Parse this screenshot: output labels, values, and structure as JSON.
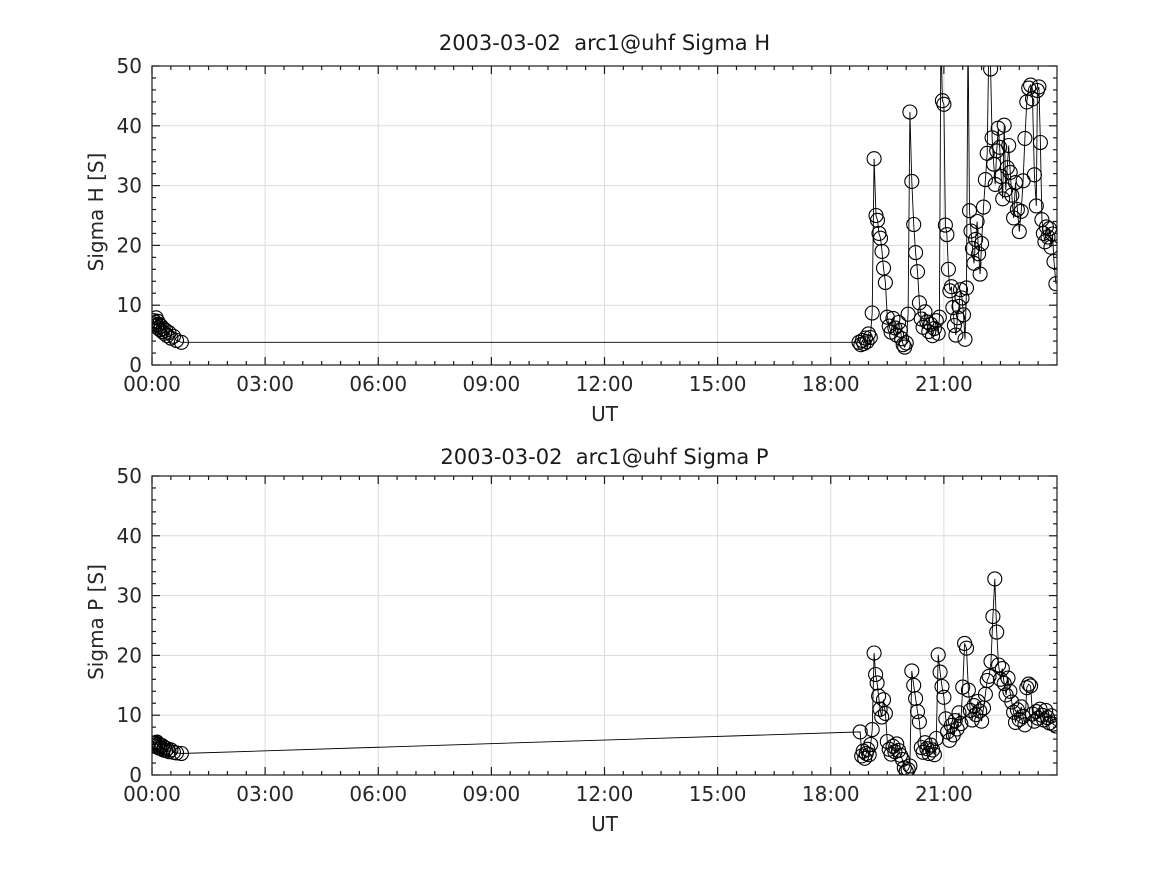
{
  "figure": {
    "background_color": "#ffffff",
    "line_color": "#000000",
    "marker_color": "#000000",
    "grid_color": "#dcdcdc",
    "axis_color": "#1a1a1a"
  },
  "chart_data": [
    {
      "type": "line",
      "title": "2003-03-02  arc1@uhf Sigma H",
      "xlabel": "UT",
      "ylabel": "Sigma H [S]",
      "xlim_hours": [
        0,
        24
      ],
      "ylim": [
        0,
        50
      ],
      "grid": true,
      "marker": "open-circle",
      "x_major_tick_hours": [
        0,
        3,
        6,
        9,
        12,
        15,
        18,
        21
      ],
      "x_tick_labels": [
        "00:00",
        "03:00",
        "06:00",
        "09:00",
        "12:00",
        "15:00",
        "18:00",
        "21:00"
      ],
      "x_minor_step_hours": 0.5,
      "y_major_ticks": [
        0,
        10,
        20,
        30,
        40,
        50
      ],
      "y_minor_step": 2,
      "points_hours_value": [
        [
          0.03,
          6.9
        ],
        [
          0.05,
          7.4
        ],
        [
          0.07,
          6.5
        ],
        [
          0.09,
          7.1
        ],
        [
          0.11,
          7.9
        ],
        [
          0.13,
          6.7
        ],
        [
          0.15,
          7.3
        ],
        [
          0.17,
          6.2
        ],
        [
          0.19,
          6.8
        ],
        [
          0.21,
          5.9
        ],
        [
          0.24,
          6.5
        ],
        [
          0.27,
          5.6
        ],
        [
          0.3,
          6.1
        ],
        [
          0.33,
          5.3
        ],
        [
          0.36,
          5.8
        ],
        [
          0.4,
          4.9
        ],
        [
          0.45,
          5.4
        ],
        [
          0.5,
          4.5
        ],
        [
          0.57,
          4.8
        ],
        [
          0.65,
          4.1
        ],
        [
          0.78,
          3.8
        ],
        [
          18.75,
          3.8
        ],
        [
          18.8,
          3.4
        ],
        [
          18.84,
          4.1
        ],
        [
          18.88,
          3.6
        ],
        [
          18.92,
          4.5
        ],
        [
          18.96,
          3.9
        ],
        [
          19.0,
          5.2
        ],
        [
          19.05,
          4.6
        ],
        [
          19.1,
          8.7
        ],
        [
          19.15,
          34.5
        ],
        [
          19.2,
          25.0
        ],
        [
          19.24,
          24.2
        ],
        [
          19.28,
          22.0
        ],
        [
          19.32,
          21.2
        ],
        [
          19.36,
          19.0
        ],
        [
          19.4,
          16.2
        ],
        [
          19.45,
          13.8
        ],
        [
          19.5,
          8.0
        ],
        [
          19.55,
          6.5
        ],
        [
          19.6,
          5.5
        ],
        [
          19.65,
          7.8
        ],
        [
          19.7,
          6.2
        ],
        [
          19.75,
          5.0
        ],
        [
          19.8,
          7.1
        ],
        [
          19.85,
          5.8
        ],
        [
          19.88,
          4.4
        ],
        [
          19.92,
          3.4
        ],
        [
          19.96,
          3.0
        ],
        [
          20.0,
          3.7
        ],
        [
          20.05,
          8.5
        ],
        [
          20.1,
          42.3
        ],
        [
          20.15,
          30.7
        ],
        [
          20.2,
          23.5
        ],
        [
          20.25,
          18.8
        ],
        [
          20.3,
          15.6
        ],
        [
          20.35,
          10.4
        ],
        [
          20.4,
          7.7
        ],
        [
          20.45,
          6.3
        ],
        [
          20.5,
          8.9
        ],
        [
          20.55,
          7.2
        ],
        [
          20.6,
          5.6
        ],
        [
          20.65,
          6.8
        ],
        [
          20.7,
          4.9
        ],
        [
          20.75,
          6.1
        ],
        [
          20.8,
          7.4
        ],
        [
          20.85,
          5.3
        ],
        [
          20.88,
          8.0
        ],
        [
          20.92,
          55.5
        ],
        [
          20.96,
          44.2
        ],
        [
          21.0,
          43.6
        ],
        [
          21.04,
          23.4
        ],
        [
          21.08,
          21.8
        ],
        [
          21.12,
          16.0
        ],
        [
          21.16,
          12.4
        ],
        [
          21.2,
          13.1
        ],
        [
          21.24,
          9.6
        ],
        [
          21.28,
          6.6
        ],
        [
          21.32,
          5.0
        ],
        [
          21.36,
          7.9
        ],
        [
          21.4,
          9.8
        ],
        [
          21.44,
          12.6
        ],
        [
          21.48,
          11.2
        ],
        [
          21.52,
          8.4
        ],
        [
          21.56,
          4.3
        ],
        [
          21.6,
          12.9
        ],
        [
          21.64,
          56.0
        ],
        [
          21.68,
          25.8
        ],
        [
          21.72,
          22.4
        ],
        [
          21.76,
          19.5
        ],
        [
          21.8,
          17.0
        ],
        [
          21.84,
          21.0
        ],
        [
          21.88,
          24.0
        ],
        [
          21.92,
          18.6
        ],
        [
          21.96,
          15.2
        ],
        [
          22.0,
          20.3
        ],
        [
          22.05,
          26.4
        ],
        [
          22.1,
          31.0
        ],
        [
          22.15,
          35.4
        ],
        [
          22.2,
          57.0
        ],
        [
          22.24,
          49.5
        ],
        [
          22.28,
          38.0
        ],
        [
          22.32,
          33.6
        ],
        [
          22.36,
          30.2
        ],
        [
          22.4,
          35.8
        ],
        [
          22.44,
          39.6
        ],
        [
          22.48,
          36.4
        ],
        [
          22.52,
          31.5
        ],
        [
          22.56,
          27.8
        ],
        [
          22.6,
          40.1
        ],
        [
          22.64,
          29.3
        ],
        [
          22.68,
          33.0
        ],
        [
          22.72,
          36.7
        ],
        [
          22.76,
          32.2
        ],
        [
          22.8,
          28.4
        ],
        [
          22.85,
          24.6
        ],
        [
          22.9,
          30.5
        ],
        [
          22.95,
          26.0
        ],
        [
          23.0,
          22.3
        ],
        [
          23.05,
          25.7
        ],
        [
          23.1,
          30.8
        ],
        [
          23.15,
          37.9
        ],
        [
          23.2,
          44.0
        ],
        [
          23.25,
          46.3
        ],
        [
          23.3,
          46.8
        ],
        [
          23.35,
          44.5
        ],
        [
          23.4,
          31.8
        ],
        [
          23.45,
          26.6
        ],
        [
          23.48,
          45.9
        ],
        [
          23.52,
          46.5
        ],
        [
          23.56,
          37.2
        ],
        [
          23.6,
          24.3
        ],
        [
          23.64,
          22.0
        ],
        [
          23.68,
          20.6
        ],
        [
          23.72,
          23.1
        ],
        [
          23.76,
          21.4
        ],
        [
          23.8,
          22.8
        ],
        [
          23.84,
          19.7
        ],
        [
          23.88,
          21.9
        ],
        [
          23.92,
          17.3
        ],
        [
          23.97,
          13.6
        ]
      ]
    },
    {
      "type": "line",
      "title": "2003-03-02  arc1@uhf Sigma P",
      "xlabel": "UT",
      "ylabel": "Sigma P [S]",
      "xlim_hours": [
        0,
        24
      ],
      "ylim": [
        0,
        50
      ],
      "grid": true,
      "marker": "open-circle",
      "x_major_tick_hours": [
        0,
        3,
        6,
        9,
        12,
        15,
        18,
        21
      ],
      "x_tick_labels": [
        "00:00",
        "03:00",
        "06:00",
        "09:00",
        "12:00",
        "15:00",
        "18:00",
        "21:00"
      ],
      "x_minor_step_hours": 0.5,
      "y_major_ticks": [
        0,
        10,
        20,
        30,
        40,
        50
      ],
      "y_minor_step": 2,
      "points_hours_value": [
        [
          0.03,
          5.0
        ],
        [
          0.05,
          5.3
        ],
        [
          0.07,
          4.8
        ],
        [
          0.09,
          5.4
        ],
        [
          0.11,
          5.1
        ],
        [
          0.13,
          5.5
        ],
        [
          0.15,
          4.7
        ],
        [
          0.17,
          5.2
        ],
        [
          0.19,
          4.5
        ],
        [
          0.21,
          5.0
        ],
        [
          0.24,
          4.4
        ],
        [
          0.27,
          4.9
        ],
        [
          0.3,
          4.2
        ],
        [
          0.33,
          4.6
        ],
        [
          0.36,
          4.1
        ],
        [
          0.4,
          4.4
        ],
        [
          0.45,
          3.9
        ],
        [
          0.5,
          4.2
        ],
        [
          0.57,
          3.8
        ],
        [
          0.65,
          3.7
        ],
        [
          0.78,
          3.6
        ],
        [
          18.78,
          7.2
        ],
        [
          18.82,
          3.2
        ],
        [
          18.86,
          4.0
        ],
        [
          18.9,
          2.8
        ],
        [
          18.94,
          3.6
        ],
        [
          18.98,
          4.3
        ],
        [
          19.02,
          3.4
        ],
        [
          19.06,
          5.1
        ],
        [
          19.1,
          7.6
        ],
        [
          19.15,
          20.4
        ],
        [
          19.19,
          16.8
        ],
        [
          19.23,
          15.4
        ],
        [
          19.27,
          13.2
        ],
        [
          19.31,
          11.0
        ],
        [
          19.35,
          9.7
        ],
        [
          19.4,
          12.6
        ],
        [
          19.45,
          10.3
        ],
        [
          19.5,
          5.6
        ],
        [
          19.55,
          4.3
        ],
        [
          19.6,
          3.5
        ],
        [
          19.65,
          4.8
        ],
        [
          19.7,
          3.9
        ],
        [
          19.75,
          5.2
        ],
        [
          19.8,
          4.1
        ],
        [
          19.85,
          3.3
        ],
        [
          19.9,
          2.6
        ],
        [
          19.95,
          1.2
        ],
        [
          20.0,
          0.6
        ],
        [
          20.05,
          0.9
        ],
        [
          20.1,
          1.5
        ],
        [
          20.15,
          17.4
        ],
        [
          20.2,
          15.0
        ],
        [
          20.25,
          12.8
        ],
        [
          20.3,
          10.6
        ],
        [
          20.35,
          8.9
        ],
        [
          20.4,
          4.6
        ],
        [
          20.45,
          3.8
        ],
        [
          20.5,
          5.4
        ],
        [
          20.55,
          4.4
        ],
        [
          20.6,
          3.6
        ],
        [
          20.65,
          5.0
        ],
        [
          20.7,
          4.2
        ],
        [
          20.75,
          3.4
        ],
        [
          20.8,
          6.1
        ],
        [
          20.85,
          20.1
        ],
        [
          20.9,
          17.2
        ],
        [
          20.95,
          14.8
        ],
        [
          21.0,
          13.0
        ],
        [
          21.05,
          9.4
        ],
        [
          21.1,
          7.2
        ],
        [
          21.15,
          5.8
        ],
        [
          21.2,
          8.3
        ],
        [
          21.25,
          6.7
        ],
        [
          21.3,
          9.1
        ],
        [
          21.35,
          7.7
        ],
        [
          21.4,
          10.4
        ],
        [
          21.45,
          8.6
        ],
        [
          21.5,
          14.7
        ],
        [
          21.55,
          22.0
        ],
        [
          21.6,
          21.2
        ],
        [
          21.65,
          14.2
        ],
        [
          21.7,
          10.8
        ],
        [
          21.75,
          9.2
        ],
        [
          21.8,
          11.6
        ],
        [
          21.85,
          10.1
        ],
        [
          21.9,
          12.3
        ],
        [
          21.95,
          10.7
        ],
        [
          22.0,
          9.0
        ],
        [
          22.05,
          11.2
        ],
        [
          22.1,
          13.5
        ],
        [
          22.15,
          15.8
        ],
        [
          22.2,
          16.5
        ],
        [
          22.25,
          19.0
        ],
        [
          22.3,
          26.5
        ],
        [
          22.35,
          32.8
        ],
        [
          22.4,
          23.9
        ],
        [
          22.45,
          18.4
        ],
        [
          22.5,
          16.0
        ],
        [
          22.55,
          17.8
        ],
        [
          22.6,
          15.3
        ],
        [
          22.65,
          13.4
        ],
        [
          22.7,
          16.2
        ],
        [
          22.75,
          14.0
        ],
        [
          22.8,
          12.2
        ],
        [
          22.85,
          10.5
        ],
        [
          22.9,
          8.8
        ],
        [
          22.95,
          10.9
        ],
        [
          23.0,
          9.3
        ],
        [
          23.05,
          11.4
        ],
        [
          23.1,
          9.8
        ],
        [
          23.15,
          8.4
        ],
        [
          23.2,
          14.6
        ],
        [
          23.25,
          15.2
        ],
        [
          23.3,
          14.9
        ],
        [
          23.35,
          10.2
        ],
        [
          23.4,
          9.0
        ],
        [
          23.45,
          10.6
        ],
        [
          23.5,
          9.5
        ],
        [
          23.55,
          11.0
        ],
        [
          23.6,
          10.0
        ],
        [
          23.65,
          9.2
        ],
        [
          23.7,
          10.8
        ],
        [
          23.75,
          9.6
        ],
        [
          23.8,
          8.7
        ],
        [
          23.85,
          9.9
        ],
        [
          23.9,
          8.5
        ],
        [
          23.97,
          8.2
        ]
      ]
    }
  ]
}
